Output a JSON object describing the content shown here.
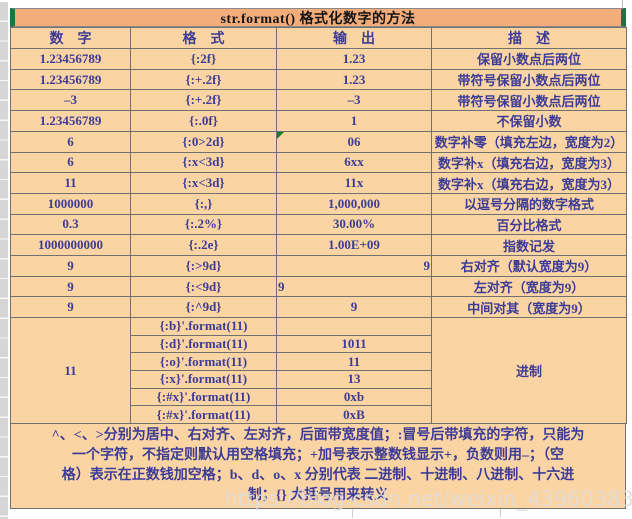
{
  "title": "str.format() 格式化数字的方法",
  "table": {
    "columns": [
      "数　字",
      "格　式",
      "输　出",
      "描　述"
    ],
    "rows": [
      {
        "number": "1.23456789",
        "format": "{:2f}",
        "output": "1.23",
        "description": "保留小数点后两位"
      },
      {
        "number": "1.23456789",
        "format": "{:+.2f}",
        "output": "1.23",
        "description": "带符号保留小数点后两位"
      },
      {
        "number": "–3",
        "format": "{:+.2f}",
        "output": "–3",
        "description": "带符号保留小数点后两位"
      },
      {
        "number": "1.23456789",
        "format": "{:.0f}",
        "output": "1",
        "description": "不保留小数"
      },
      {
        "number": "6",
        "format": "{:0>2d}",
        "output": "06",
        "description": "数字补零（填充左边，宽度为2）",
        "marker": true
      },
      {
        "number": "6",
        "format": "{:x<3d}",
        "output": "6xx",
        "description": "数字补x（填充右边，宽度为3）"
      },
      {
        "number": "11",
        "format": "{:x<3d}",
        "output": "11x",
        "description": "数字补x（填充右边，宽度为3）"
      },
      {
        "number": "1000000",
        "format": "{:,}",
        "output": "1,000,000",
        "description": "以逗号分隔的数字格式"
      },
      {
        "number": "0.3",
        "format": "{:.2%}",
        "output": "30.00%",
        "description": "百分比格式"
      },
      {
        "number": "1000000000",
        "format": "{:.2e}",
        "output": "1.00E+09",
        "description": "指数记发"
      },
      {
        "number": "9",
        "format": "{:>9d}",
        "output": "9",
        "output_align": "right",
        "description": "右对齐（默认宽度为9）"
      },
      {
        "number": "9",
        "format": "{:<9d}",
        "output": "9",
        "output_align": "left",
        "description": "左对齐（宽度为9）"
      },
      {
        "number": "9",
        "format": "{:^9d}",
        "output": "9",
        "description": "中间对其（宽度为9）"
      }
    ],
    "base_block": {
      "number": "11",
      "description": "进制",
      "sub_rows": [
        {
          "format": "{:b}'.format(11)",
          "output": ""
        },
        {
          "format": "{:d}'.format(11)",
          "output": "1011"
        },
        {
          "format": "{:o}'.format(11)",
          "output": "11"
        },
        {
          "format": "{:x}'.format(11)",
          "output": "13"
        },
        {
          "format": "{:#x}'.format(11)",
          "output": "0xb"
        },
        {
          "format": "{:#x}'.format(11)",
          "output": "0xB"
        }
      ]
    }
  },
  "footer": {
    "lines": [
      "^、<、>分别为居中、右对齐、左对齐，后面带宽度值；:冒号后带填充的字符，只能为",
      "一个字符，不指定则默认用空格填充；+加号表示整数钱显示+，负数则用–；（空",
      "格）表示在正数钱加空格；b、d、o、x 分别代表 二进制、十进制、八进制、十六进",
      "制；{} 大括号用来转义"
    ]
  },
  "watermark": "https://blog.csdn.net/weixin_43960383",
  "colors": {
    "title_bg": "#F2AD7B",
    "cell_bg": "#FBD4A4",
    "border": "#6F7070",
    "text": "#3C3C96",
    "selection_green": "#1E7345",
    "error_triangle_green": "#1E7A1E"
  }
}
